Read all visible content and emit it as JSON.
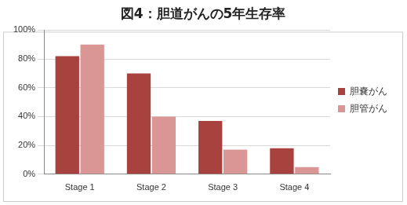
{
  "chart_data": {
    "type": "bar",
    "title": "図4：胆道がんの5年生存率",
    "categories": [
      "Stage 1",
      "Stage 2",
      "Stage 3",
      "Stage 4"
    ],
    "series": [
      {
        "name": "胆嚢がん",
        "color": "#a8423f",
        "values": [
          82,
          70,
          37,
          18
        ]
      },
      {
        "name": "胆管がん",
        "color": "#d99694",
        "values": [
          90,
          40,
          17,
          5
        ]
      }
    ],
    "ylim": [
      0,
      100
    ],
    "yticks": [
      {
        "value": 0,
        "label": "0%"
      },
      {
        "value": 20,
        "label": "20%"
      },
      {
        "value": 40,
        "label": "40%"
      },
      {
        "value": 60,
        "label": "60%"
      },
      {
        "value": 80,
        "label": "80%"
      },
      {
        "value": 100,
        "label": "100%"
      }
    ],
    "grid": true,
    "legend": "right"
  }
}
